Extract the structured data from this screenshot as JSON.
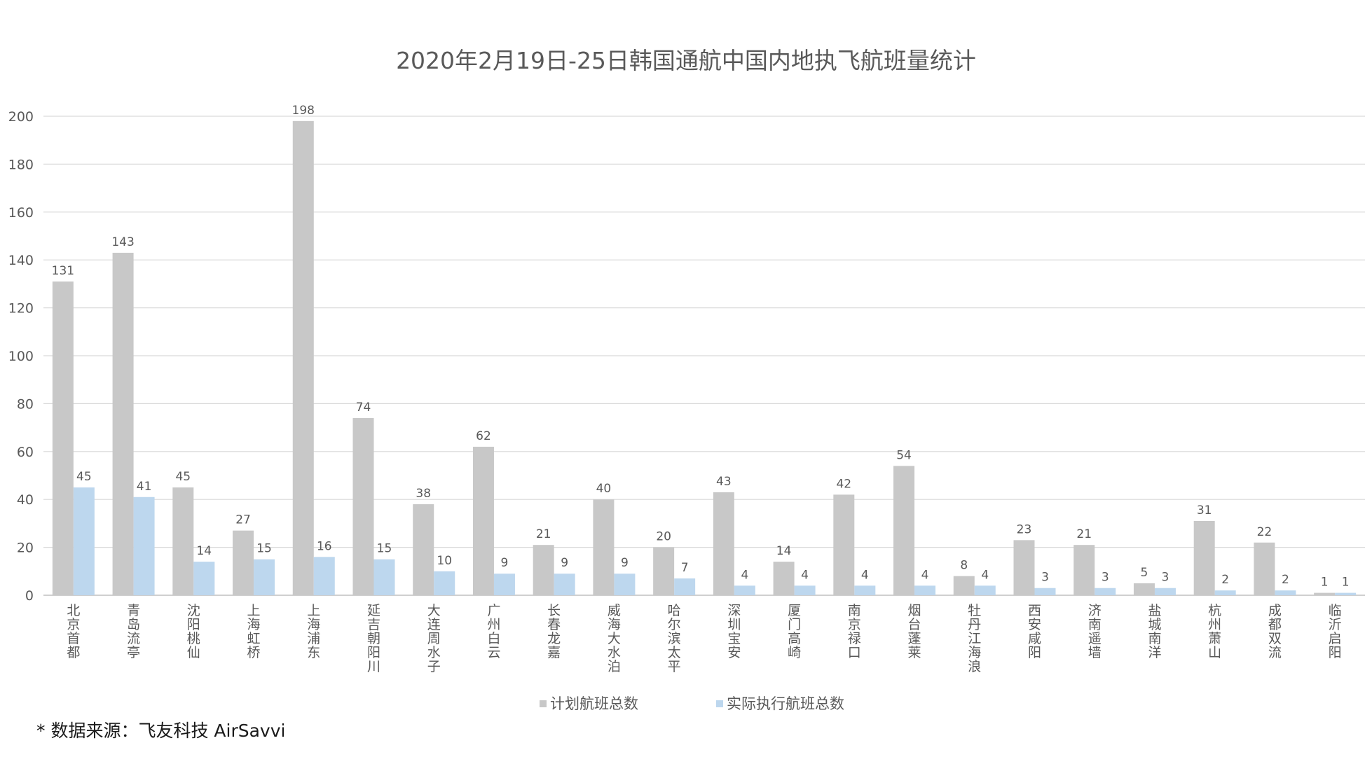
{
  "chart_data": {
    "type": "bar",
    "title": "2020年2月19日-25日韩国通航中国内地执飞航班量统计",
    "xlabel": "",
    "ylabel": "",
    "ylim": [
      0,
      200
    ],
    "yticks": [
      0,
      20,
      40,
      60,
      80,
      100,
      120,
      140,
      160,
      180,
      200
    ],
    "grid": true,
    "legend_position": "bottom",
    "categories": [
      "北京首都",
      "青岛流亭",
      "沈阳桃仙",
      "上海虹桥",
      "上海浦东",
      "延吉朝阳川",
      "大连周水子",
      "广州白云",
      "长春龙嘉",
      "威海大水泊",
      "哈尔滨太平",
      "深圳宝安",
      "厦门高崎",
      "南京禄口",
      "烟台蓬莱",
      "牡丹江海浪",
      "西安咸阳",
      "济南遥墙",
      "盐城南洋",
      "杭州萧山",
      "成都双流",
      "临沂启阳"
    ],
    "series": [
      {
        "name": "计划航班总数",
        "color": "#c8c8c8",
        "values": [
          131,
          143,
          45,
          27,
          198,
          74,
          38,
          62,
          21,
          40,
          20,
          43,
          14,
          42,
          54,
          8,
          23,
          21,
          5,
          31,
          22,
          1
        ]
      },
      {
        "name": "实际执行航班总数",
        "color": "#bdd7ee",
        "values": [
          45,
          41,
          14,
          15,
          16,
          15,
          10,
          9,
          9,
          9,
          7,
          4,
          4,
          4,
          4,
          4,
          3,
          3,
          3,
          2,
          2,
          1
        ]
      }
    ]
  },
  "source_note": "* 数据来源：飞友科技 AirSavvi",
  "colors": {
    "grid": "#d9d9d9",
    "axis": "#bfbfbf",
    "text": "#595959"
  }
}
